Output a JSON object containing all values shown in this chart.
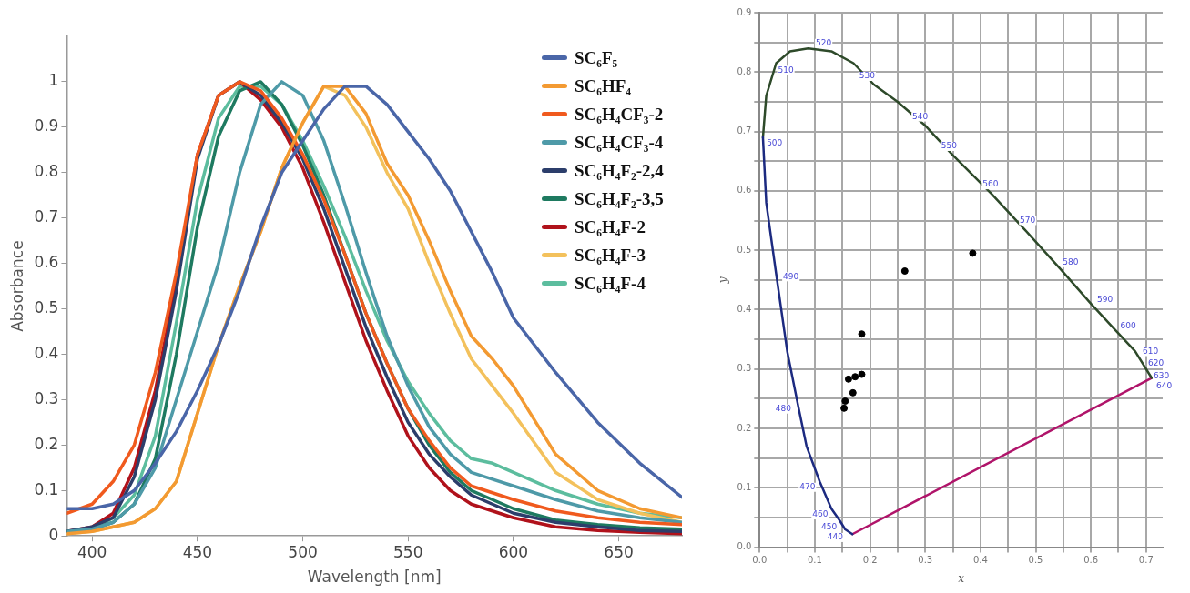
{
  "chart_data": [
    {
      "type": "line",
      "xlabel": "Wavelength [nm]",
      "ylabel": "Absorbance",
      "x": [
        388,
        400,
        410,
        420,
        430,
        440,
        450,
        460,
        470,
        480,
        490,
        500,
        510,
        520,
        530,
        540,
        550,
        560,
        570,
        580,
        590,
        600,
        620,
        640,
        660,
        680
      ],
      "xlim": [
        388,
        680
      ],
      "xticks": [
        400,
        450,
        500,
        550,
        600,
        650
      ],
      "ylim": [
        0,
        1.1
      ],
      "yticks": [
        0,
        0.1,
        0.2,
        0.3,
        0.4,
        0.5,
        0.6,
        0.7,
        0.8,
        0.9,
        1
      ],
      "grid": false,
      "legend": "top right",
      "marker": "none",
      "line_style": "solid",
      "series": [
        {
          "name": "SC₆F₅",
          "color": "#4a66a8",
          "values": [
            0.06,
            0.06,
            0.07,
            0.1,
            0.16,
            0.23,
            0.32,
            0.42,
            0.54,
            0.68,
            0.8,
            0.87,
            0.94,
            0.99,
            0.99,
            0.95,
            0.89,
            0.83,
            0.76,
            0.67,
            0.58,
            0.48,
            0.36,
            0.25,
            0.16,
            0.085
          ]
        },
        {
          "name": "SC₆HF₄",
          "color": "#f39a32",
          "values": [
            0.005,
            0.01,
            0.02,
            0.03,
            0.06,
            0.12,
            0.27,
            0.42,
            0.55,
            0.67,
            0.81,
            0.91,
            0.99,
            0.99,
            0.93,
            0.82,
            0.75,
            0.65,
            0.54,
            0.44,
            0.39,
            0.33,
            0.18,
            0.1,
            0.06,
            0.04
          ]
        },
        {
          "name": "SC₆H₄CF₃-2",
          "color": "#f05a1e",
          "values": [
            0.05,
            0.07,
            0.12,
            0.2,
            0.36,
            0.58,
            0.84,
            0.97,
            1.0,
            0.98,
            0.92,
            0.84,
            0.74,
            0.62,
            0.49,
            0.38,
            0.28,
            0.21,
            0.15,
            0.11,
            0.095,
            0.08,
            0.055,
            0.04,
            0.03,
            0.025
          ]
        },
        {
          "name": "SC₆H₄CF₃-4",
          "color": "#4e9aa8",
          "values": [
            0.01,
            0.015,
            0.03,
            0.07,
            0.15,
            0.3,
            0.45,
            0.6,
            0.8,
            0.95,
            1.0,
            0.97,
            0.87,
            0.73,
            0.58,
            0.44,
            0.33,
            0.24,
            0.18,
            0.14,
            0.125,
            0.11,
            0.08,
            0.055,
            0.04,
            0.03
          ]
        },
        {
          "name": "SC₆H₄F₂-2,4",
          "color": "#2c3e6b",
          "values": [
            0.01,
            0.02,
            0.04,
            0.13,
            0.3,
            0.54,
            0.83,
            0.97,
            1.0,
            0.97,
            0.91,
            0.83,
            0.72,
            0.59,
            0.46,
            0.35,
            0.25,
            0.18,
            0.13,
            0.09,
            0.07,
            0.05,
            0.03,
            0.02,
            0.012,
            0.01
          ]
        },
        {
          "name": "SC₆H₄F₂-3,5",
          "color": "#1e7a60",
          "values": [
            0.01,
            0.015,
            0.03,
            0.07,
            0.17,
            0.4,
            0.68,
            0.88,
            0.98,
            1.0,
            0.95,
            0.86,
            0.75,
            0.62,
            0.49,
            0.38,
            0.28,
            0.2,
            0.14,
            0.1,
            0.08,
            0.06,
            0.035,
            0.025,
            0.018,
            0.015
          ]
        },
        {
          "name": "SC₆H₄F-2",
          "color": "#b0121b",
          "values": [
            0.01,
            0.02,
            0.05,
            0.15,
            0.32,
            0.56,
            0.84,
            0.97,
            1.0,
            0.96,
            0.9,
            0.81,
            0.69,
            0.56,
            0.43,
            0.32,
            0.22,
            0.15,
            0.1,
            0.07,
            0.055,
            0.04,
            0.02,
            0.012,
            0.008,
            0.005
          ]
        },
        {
          "name": "SC₆H₄F-3",
          "color": "#f3c15c",
          "values": [
            0.005,
            0.01,
            0.02,
            0.03,
            0.06,
            0.12,
            0.27,
            0.42,
            0.55,
            0.67,
            0.81,
            0.91,
            0.99,
            0.97,
            0.9,
            0.8,
            0.72,
            0.6,
            0.49,
            0.39,
            0.33,
            0.27,
            0.14,
            0.08,
            0.05,
            0.03
          ]
        },
        {
          "name": "SC₆H₄F-4",
          "color": "#5cbd9e",
          "values": [
            0.01,
            0.015,
            0.04,
            0.09,
            0.22,
            0.47,
            0.74,
            0.92,
            0.99,
            0.99,
            0.95,
            0.87,
            0.77,
            0.66,
            0.54,
            0.43,
            0.34,
            0.27,
            0.21,
            0.17,
            0.16,
            0.14,
            0.1,
            0.07,
            0.05,
            0.04
          ]
        }
      ]
    },
    {
      "type": "scatter",
      "xlabel": "x",
      "ylabel": "y",
      "xlim": [
        0,
        0.73
      ],
      "xticks": [
        {
          "value": 0,
          "label": "0.0"
        },
        {
          "value": 0.05,
          "label": null
        },
        {
          "value": 0.1,
          "label": "0.1"
        },
        {
          "value": 0.15,
          "label": null
        },
        {
          "value": 0.2,
          "label": "0.2"
        },
        {
          "value": 0.25,
          "label": null
        },
        {
          "value": 0.3,
          "label": "0.3"
        },
        {
          "value": 0.35,
          "label": null
        },
        {
          "value": 0.4,
          "label": "0.4"
        },
        {
          "value": 0.45,
          "label": null
        },
        {
          "value": 0.5,
          "label": "0.5"
        },
        {
          "value": 0.55,
          "label": null
        },
        {
          "value": 0.6,
          "label": "0.6"
        },
        {
          "value": 0.65,
          "label": null
        },
        {
          "value": 0.7,
          "label": "0.7"
        }
      ],
      "ylim": [
        0,
        0.9
      ],
      "yticks": [
        {
          "value": 0,
          "label": "0.0"
        },
        {
          "value": 0.05,
          "label": null
        },
        {
          "value": 0.1,
          "label": "0.1"
        },
        {
          "value": 0.15,
          "label": null
        },
        {
          "value": 0.2,
          "label": "0.2"
        },
        {
          "value": 0.25,
          "label": null
        },
        {
          "value": 0.3,
          "label": "0.3"
        },
        {
          "value": 0.35,
          "label": null
        },
        {
          "value": 0.4,
          "label": "0.4"
        },
        {
          "value": 0.45,
          "label": null
        },
        {
          "value": 0.5,
          "label": "0.5"
        },
        {
          "value": 0.55,
          "label": null
        },
        {
          "value": 0.6,
          "label": "0.6"
        },
        {
          "value": 0.65,
          "label": null
        },
        {
          "value": 0.7,
          "label": "0.7"
        },
        {
          "value": 0.75,
          "label": null
        },
        {
          "value": 0.8,
          "label": "0.8"
        },
        {
          "value": 0.85,
          "label": null
        },
        {
          "value": 0.9,
          "label": "0.9"
        }
      ],
      "grid": true,
      "marker": "circle",
      "series": [
        {
          "type": "line",
          "color": "#1c2a80",
          "marker": "none",
          "x": [
            0.006,
            0.012,
            0.03,
            0.05,
            0.07,
            0.085,
            0.109,
            0.13,
            0.145,
            0.155,
            0.168
          ],
          "values": [
            0.69,
            0.58,
            0.46,
            0.33,
            0.237,
            0.17,
            0.11,
            0.065,
            0.045,
            0.03,
            0.022
          ]
        },
        {
          "type": "line",
          "color": "#2e4a2a",
          "marker": "none",
          "x": [
            0.006,
            0.012,
            0.03,
            0.055,
            0.088,
            0.13,
            0.17,
            0.207,
            0.25,
            0.3,
            0.35,
            0.42,
            0.48,
            0.546,
            0.6,
            0.64,
            0.68,
            0.71
          ],
          "values": [
            0.69,
            0.76,
            0.815,
            0.835,
            0.84,
            0.835,
            0.815,
            0.779,
            0.75,
            0.71,
            0.66,
            0.595,
            0.535,
            0.467,
            0.41,
            0.37,
            0.33,
            0.285
          ]
        },
        {
          "type": "line",
          "color": "#b0146a",
          "marker": "none",
          "x": [
            0.168,
            0.71
          ],
          "values": [
            0.022,
            0.285
          ]
        },
        {
          "type": "scatter",
          "color": "#000000",
          "x": [
            0.263,
            0.386,
            0.185,
            0.161,
            0.173,
            0.185,
            0.169,
            0.155,
            0.153
          ],
          "values": [
            0.465,
            0.495,
            0.359,
            0.283,
            0.287,
            0.291,
            0.26,
            0.246,
            0.234
          ]
        }
      ],
      "annotations": [
        {
          "text": "440",
          "x": 0.155,
          "y": 0.028
        },
        {
          "text": "450",
          "x": 0.145,
          "y": 0.045
        },
        {
          "text": "460",
          "x": 0.13,
          "y": 0.065
        },
        {
          "text": "470",
          "x": 0.109,
          "y": 0.11
        },
        {
          "text": "480",
          "x": 0.07,
          "y": 0.237
        },
        {
          "text": "490",
          "x": 0.03,
          "y": 0.46
        },
        {
          "text": "500",
          "x": 0.006,
          "y": 0.69
        },
        {
          "text": "510",
          "x": 0.03,
          "y": 0.815
        },
        {
          "text": "520",
          "x": 0.13,
          "y": 0.835
        },
        {
          "text": "530",
          "x": 0.207,
          "y": 0.779
        },
        {
          "text": "540",
          "x": 0.3,
          "y": 0.71
        },
        {
          "text": "550",
          "x": 0.35,
          "y": 0.66
        },
        {
          "text": "560",
          "x": 0.42,
          "y": 0.595
        },
        {
          "text": "570",
          "x": 0.48,
          "y": 0.535
        },
        {
          "text": "580",
          "x": 0.546,
          "y": 0.467
        },
        {
          "text": "590",
          "x": 0.6,
          "y": 0.41
        },
        {
          "text": "600",
          "x": 0.64,
          "y": 0.37
        },
        {
          "text": "610",
          "x": 0.68,
          "y": 0.33
        },
        {
          "text": "620",
          "x": 0.69,
          "y": 0.315
        },
        {
          "text": "630",
          "x": 0.7,
          "y": 0.3
        },
        {
          "text": "640",
          "x": 0.705,
          "y": 0.2925
        }
      ]
    }
  ]
}
